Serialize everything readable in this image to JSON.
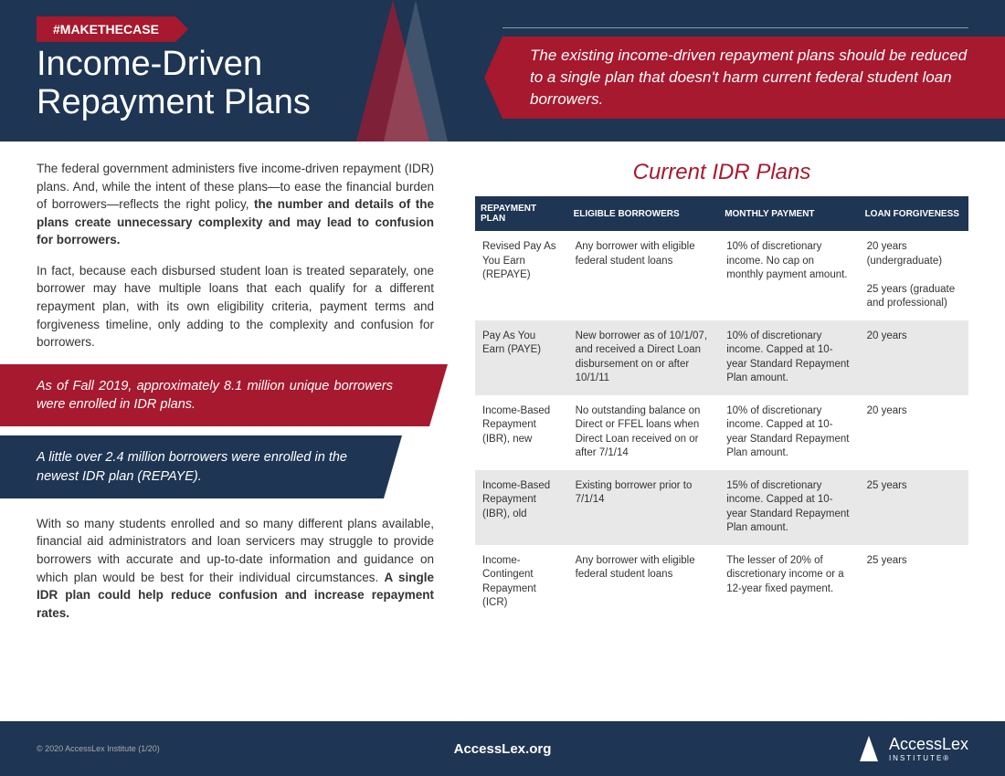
{
  "header": {
    "hashtag": "#MAKETHECASE",
    "title_line1": "Income-Driven",
    "title_line2": "Repayment Plans",
    "tagline": "The existing income-driven repayment plans should be reduced to a single plan that doesn't harm current federal student loan borrowers."
  },
  "body": {
    "p1a": "The federal government administers five income-driven repayment (IDR) plans. And, while the intent of these plans—to ease the financial burden of borrowers—reflects the right policy, ",
    "p1b": "the number and details of the plans create unnecessary complexity and may lead to confusion for borrowers.",
    "p2": "In fact, because each disbursed student loan is treated separately, one borrower may have multiple loans that each qualify for a different repayment plan, with its own eligibility criteria, payment terms and forgiveness timeline, only adding to the complexity and confusion for borrowers.",
    "callout1": "As of Fall 2019, approximately 8.1 million unique borrowers were enrolled in IDR plans.",
    "callout2": "A little over 2.4 million borrowers were enrolled in the newest IDR plan (REPAYE).",
    "p3a": "With so many students enrolled and so many different plans available, financial aid administrators and loan servicers may struggle to provide borrowers with accurate and up-to-date information and guidance on which plan would be best for their individual circumstances. ",
    "p3b": "A single IDR plan could help reduce confusion and increase repayment rates."
  },
  "table": {
    "title": "Current IDR Plans",
    "headers": [
      "REPAYMENT PLAN",
      "ELIGIBLE BORROWERS",
      "MONTHLY PAYMENT",
      "LOAN FORGIVENESS"
    ],
    "rows": [
      [
        "Revised Pay As You Earn (REPAYE)",
        "Any borrower with eligible federal student loans",
        "10% of discretionary income. No cap on monthly payment amount.",
        "20 years (undergraduate)\n\n25 years (graduate and professional)"
      ],
      [
        "Pay As You Earn (PAYE)",
        "New borrower as of 10/1/07, and received a Direct Loan disbursement on or after 10/1/11",
        "10% of discretionary income. Capped at 10-year Standard Repayment Plan amount.",
        "20 years"
      ],
      [
        "Income-Based Repayment (IBR), new",
        "No outstanding balance on Direct or FFEL loans when Direct Loan received on or after 7/1/14",
        "10% of discretionary income. Capped at 10-year Standard Repayment Plan amount.",
        "20 years"
      ],
      [
        "Income-Based Repayment (IBR), old",
        "Existing borrower prior to 7/1/14",
        "15% of discretionary income. Capped at 10-year Standard Repayment Plan amount.",
        "25 years"
      ],
      [
        "Income-Contingent Repayment (ICR)",
        "Any borrower with eligible federal student loans",
        "The lesser of 20% of discretionary income or a 12-year fixed payment.",
        "25 years"
      ]
    ]
  },
  "footer": {
    "copyright": "© 2020 AccessLex Institute (1/20)",
    "url": "AccessLex.org",
    "logo_main": "AccessLex",
    "logo_sub": "INSTITUTE®"
  },
  "colors": {
    "navy": "#1e3553",
    "crimson": "#a6192e",
    "white": "#ffffff",
    "row_alt": "#e8e8e8",
    "text": "#333333"
  }
}
